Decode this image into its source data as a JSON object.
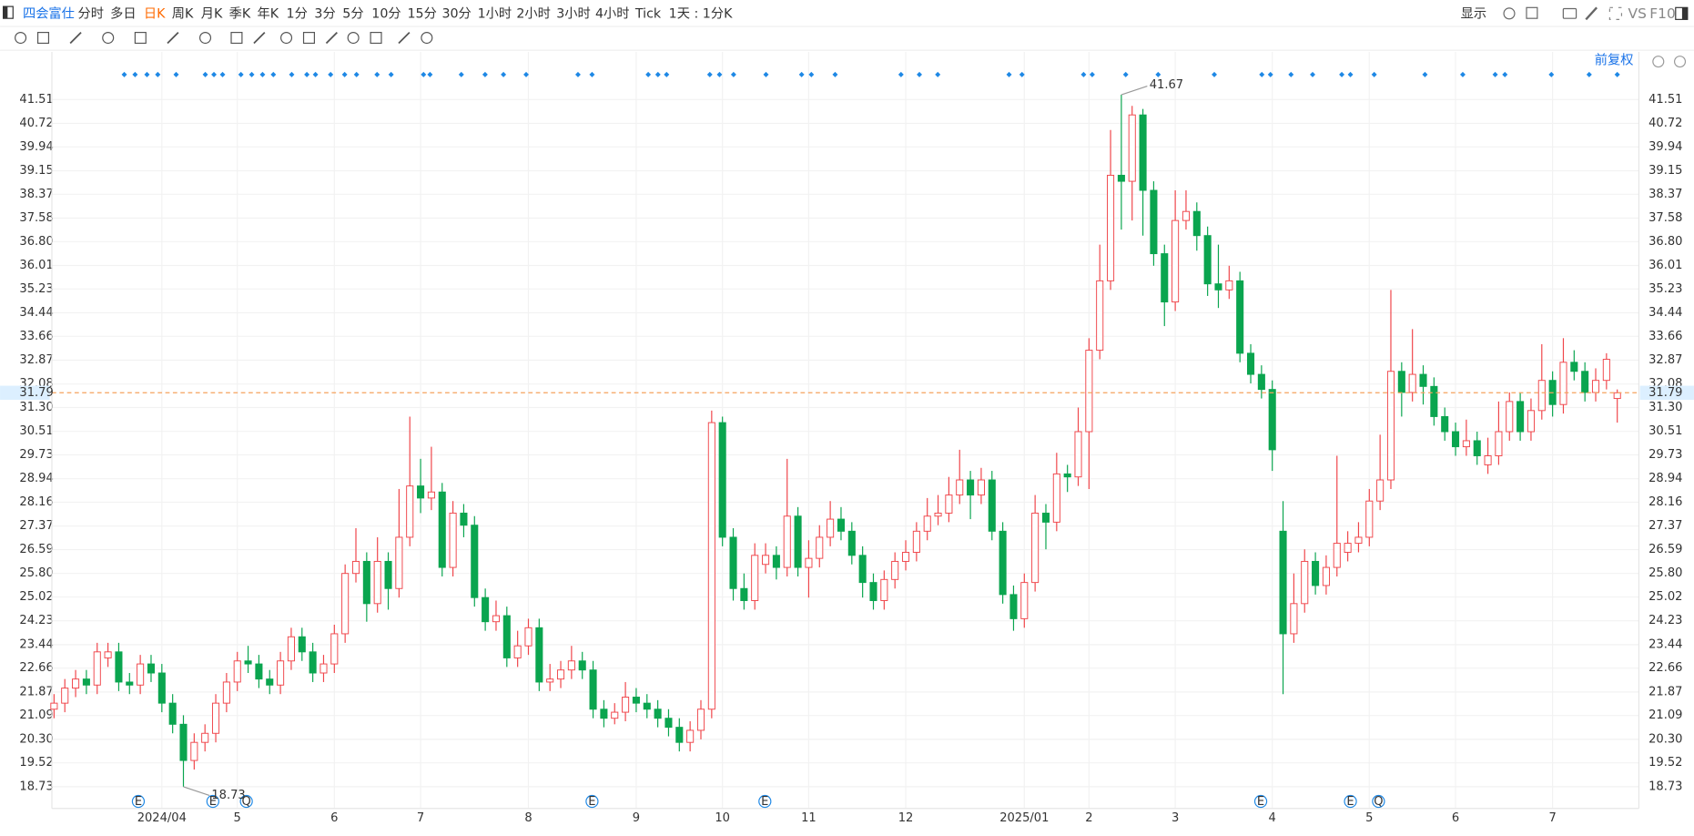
{
  "toolbar": {
    "symbol": "四会富仕",
    "periods": [
      "分时",
      "多日",
      "日K",
      "周K",
      "月K",
      "季K",
      "年K",
      "1分",
      "3分",
      "5分",
      "10分",
      "15分",
      "30分",
      "1小时",
      "2小时",
      "3小时",
      "4小时",
      "Tick"
    ],
    "range": "1天 : 1分K",
    "display": "显示",
    "vs": "VS",
    "f10": "F10"
  },
  "chart_data": {
    "type": "candlestick",
    "adjust": "前复权",
    "categories": [
      null,
      null,
      null,
      null,
      null,
      null,
      null,
      null,
      null,
      null,
      "2024/04",
      null,
      null,
      null,
      null,
      null,
      null,
      "5",
      null,
      null,
      null,
      null,
      null,
      null,
      null,
      null,
      "6",
      null,
      null,
      null,
      null,
      null,
      null,
      null,
      "7",
      null,
      null,
      null,
      null,
      null,
      null,
      null,
      null,
      null,
      "8",
      null,
      null,
      null,
      null,
      null,
      null,
      null,
      null,
      null,
      "9",
      null,
      null,
      null,
      null,
      null,
      null,
      null,
      "10",
      null,
      null,
      null,
      null,
      null,
      null,
      null,
      "11",
      null,
      null,
      null,
      null,
      null,
      null,
      null,
      null,
      "12",
      null,
      null,
      null,
      null,
      null,
      null,
      null,
      null,
      null,
      null,
      "2025/01",
      null,
      null,
      null,
      null,
      null,
      "2",
      null,
      null,
      null,
      null,
      null,
      null,
      null,
      "3",
      null,
      null,
      null,
      null,
      null,
      null,
      null,
      null,
      "4",
      null,
      null,
      null,
      null,
      null,
      null,
      null,
      null,
      "5",
      null,
      null,
      null,
      null,
      null,
      null,
      null,
      "6",
      null,
      null,
      null,
      null,
      null,
      null,
      null,
      null,
      "7",
      null,
      null,
      null,
      null,
      null,
      null
    ],
    "series": [
      {
        "values": [
          [
            21.3,
            21.8,
            21.0,
            21.5
          ],
          [
            21.5,
            22.3,
            21.2,
            22.0
          ],
          [
            22.0,
            22.6,
            21.7,
            22.3
          ],
          [
            22.3,
            22.6,
            21.8,
            22.1
          ],
          [
            22.1,
            23.5,
            21.8,
            23.2
          ],
          [
            23.0,
            23.5,
            22.7,
            23.2
          ],
          [
            23.2,
            23.5,
            21.9,
            22.2
          ],
          [
            22.2,
            22.5,
            21.8,
            22.1
          ],
          [
            22.1,
            23.1,
            21.8,
            22.8
          ],
          [
            22.8,
            23.1,
            22.2,
            22.5
          ],
          [
            22.5,
            22.8,
            21.2,
            21.5
          ],
          [
            21.5,
            21.8,
            20.5,
            20.8
          ],
          [
            20.8,
            21.1,
            18.73,
            19.6
          ],
          [
            19.6,
            20.5,
            19.3,
            20.2
          ],
          [
            20.2,
            20.8,
            19.9,
            20.5
          ],
          [
            20.5,
            21.8,
            20.2,
            21.5
          ],
          [
            21.5,
            22.5,
            21.2,
            22.2
          ],
          [
            22.2,
            23.2,
            21.9,
            22.9
          ],
          [
            22.9,
            23.4,
            22.5,
            22.8
          ],
          [
            22.8,
            23.1,
            22.0,
            22.3
          ],
          [
            22.3,
            22.6,
            21.8,
            22.1
          ],
          [
            22.1,
            23.2,
            21.8,
            22.9
          ],
          [
            22.9,
            24.0,
            22.6,
            23.7
          ],
          [
            23.7,
            24.0,
            22.9,
            23.2
          ],
          [
            23.2,
            23.5,
            22.2,
            22.5
          ],
          [
            22.5,
            23.1,
            22.2,
            22.8
          ],
          [
            22.8,
            24.1,
            22.5,
            23.8
          ],
          [
            23.8,
            26.1,
            23.5,
            25.8
          ],
          [
            25.8,
            27.3,
            25.5,
            26.2
          ],
          [
            26.2,
            26.5,
            24.2,
            24.8
          ],
          [
            24.8,
            27.0,
            24.5,
            26.2
          ],
          [
            26.2,
            26.5,
            24.6,
            25.3
          ],
          [
            25.3,
            28.6,
            25.0,
            27.0
          ],
          [
            27.0,
            31.0,
            26.7,
            28.7
          ],
          [
            28.7,
            29.6,
            27.8,
            28.3
          ],
          [
            28.3,
            30.0,
            27.9,
            28.5
          ],
          [
            28.5,
            28.8,
            25.7,
            26.0
          ],
          [
            26.0,
            28.2,
            25.7,
            27.8
          ],
          [
            27.8,
            28.1,
            27.0,
            27.4
          ],
          [
            27.4,
            27.7,
            24.7,
            25.0
          ],
          [
            25.0,
            25.3,
            23.9,
            24.2
          ],
          [
            24.2,
            24.9,
            23.9,
            24.4
          ],
          [
            24.4,
            24.7,
            22.7,
            23.0
          ],
          [
            23.0,
            23.9,
            22.7,
            23.4
          ],
          [
            23.4,
            24.3,
            23.1,
            24.0
          ],
          [
            24.0,
            24.3,
            21.9,
            22.2
          ],
          [
            22.2,
            22.8,
            21.9,
            22.3
          ],
          [
            22.3,
            22.9,
            22.0,
            22.6
          ],
          [
            22.6,
            23.4,
            22.3,
            22.9
          ],
          [
            22.9,
            23.2,
            22.3,
            22.6
          ],
          [
            22.6,
            22.9,
            21.0,
            21.3
          ],
          [
            21.3,
            21.6,
            20.7,
            21.0
          ],
          [
            21.0,
            21.5,
            20.8,
            21.2
          ],
          [
            21.2,
            22.2,
            20.9,
            21.7
          ],
          [
            21.7,
            22.0,
            21.2,
            21.5
          ],
          [
            21.5,
            21.8,
            21.0,
            21.3
          ],
          [
            21.3,
            21.6,
            20.7,
            21.0
          ],
          [
            21.0,
            21.3,
            20.4,
            20.7
          ],
          [
            20.7,
            21.0,
            19.9,
            20.2
          ],
          [
            20.2,
            20.9,
            19.9,
            20.6
          ],
          [
            20.6,
            21.6,
            20.3,
            21.3
          ],
          [
            21.3,
            31.2,
            21.0,
            30.8
          ],
          [
            30.8,
            31.0,
            26.7,
            27.0
          ],
          [
            27.0,
            27.3,
            24.9,
            25.3
          ],
          [
            25.3,
            25.8,
            24.6,
            24.9
          ],
          [
            24.9,
            26.8,
            24.6,
            26.4
          ],
          [
            26.1,
            26.8,
            25.8,
            26.4
          ],
          [
            26.4,
            26.7,
            25.6,
            26.0
          ],
          [
            26.0,
            29.6,
            25.7,
            27.7
          ],
          [
            27.7,
            28.0,
            25.7,
            26.0
          ],
          [
            26.0,
            26.9,
            25.0,
            26.3
          ],
          [
            26.3,
            27.4,
            26.0,
            27.0
          ],
          [
            27.0,
            28.2,
            26.7,
            27.6
          ],
          [
            27.6,
            28.0,
            26.9,
            27.2
          ],
          [
            27.2,
            27.5,
            26.1,
            26.4
          ],
          [
            26.4,
            26.7,
            25.0,
            25.5
          ],
          [
            25.5,
            25.8,
            24.6,
            24.9
          ],
          [
            24.9,
            25.9,
            24.6,
            25.6
          ],
          [
            25.6,
            26.5,
            25.3,
            26.2
          ],
          [
            26.2,
            26.9,
            25.9,
            26.5
          ],
          [
            26.5,
            27.5,
            26.2,
            27.2
          ],
          [
            27.2,
            28.3,
            26.9,
            27.7
          ],
          [
            27.7,
            28.4,
            27.4,
            27.8
          ],
          [
            27.8,
            29.0,
            27.5,
            28.4
          ],
          [
            28.4,
            29.9,
            28.1,
            28.9
          ],
          [
            28.9,
            29.2,
            27.6,
            28.4
          ],
          [
            28.4,
            29.3,
            28.1,
            28.9
          ],
          [
            28.9,
            29.2,
            26.9,
            27.2
          ],
          [
            27.2,
            27.5,
            24.8,
            25.1
          ],
          [
            25.1,
            25.4,
            23.9,
            24.3
          ],
          [
            24.3,
            25.8,
            24.0,
            25.5
          ],
          [
            25.5,
            28.4,
            25.2,
            27.8
          ],
          [
            27.8,
            28.1,
            26.6,
            27.5
          ],
          [
            27.5,
            29.8,
            27.2,
            29.1
          ],
          [
            29.1,
            29.4,
            28.5,
            29.0
          ],
          [
            29.0,
            31.3,
            28.7,
            30.5
          ],
          [
            30.5,
            33.6,
            28.6,
            33.2
          ],
          [
            33.2,
            36.7,
            32.9,
            35.5
          ],
          [
            35.5,
            40.5,
            35.2,
            39.0
          ],
          [
            39.0,
            41.67,
            37.2,
            38.8
          ],
          [
            38.8,
            41.3,
            37.5,
            41.0
          ],
          [
            41.0,
            41.2,
            37.0,
            38.5
          ],
          [
            38.5,
            38.8,
            36.0,
            36.4
          ],
          [
            36.4,
            36.7,
            34.0,
            34.8
          ],
          [
            34.8,
            38.5,
            34.5,
            37.5
          ],
          [
            37.5,
            38.5,
            37.2,
            37.8
          ],
          [
            37.8,
            38.1,
            36.5,
            37.0
          ],
          [
            37.0,
            37.3,
            35.0,
            35.4
          ],
          [
            35.4,
            36.7,
            34.6,
            35.2
          ],
          [
            35.2,
            36.0,
            34.9,
            35.5
          ],
          [
            35.5,
            35.8,
            32.8,
            33.1
          ],
          [
            33.1,
            33.4,
            32.1,
            32.4
          ],
          [
            32.4,
            32.7,
            31.6,
            31.9
          ],
          [
            31.9,
            32.2,
            29.2,
            29.9
          ],
          [
            27.2,
            28.2,
            21.8,
            23.8
          ],
          [
            23.8,
            25.8,
            23.5,
            24.8
          ],
          [
            24.8,
            26.6,
            24.5,
            26.2
          ],
          [
            26.2,
            26.5,
            25.1,
            25.4
          ],
          [
            25.4,
            26.4,
            25.1,
            26.0
          ],
          [
            26.0,
            29.7,
            25.7,
            26.8
          ],
          [
            26.5,
            27.2,
            26.2,
            26.8
          ],
          [
            26.8,
            27.5,
            26.5,
            27.0
          ],
          [
            27.0,
            28.6,
            26.7,
            28.2
          ],
          [
            28.2,
            30.4,
            27.9,
            28.9
          ],
          [
            28.9,
            35.2,
            28.6,
            32.5
          ],
          [
            32.5,
            32.8,
            31.0,
            31.8
          ],
          [
            31.8,
            33.9,
            31.5,
            32.4
          ],
          [
            32.4,
            32.7,
            31.4,
            32.0
          ],
          [
            32.0,
            32.3,
            30.7,
            31.0
          ],
          [
            31.0,
            31.3,
            30.2,
            30.5
          ],
          [
            30.5,
            30.8,
            29.7,
            30.0
          ],
          [
            30.0,
            30.9,
            29.7,
            30.2
          ],
          [
            30.2,
            30.5,
            29.4,
            29.7
          ],
          [
            29.4,
            30.3,
            29.1,
            29.7
          ],
          [
            29.7,
            31.5,
            29.4,
            30.5
          ],
          [
            30.5,
            31.8,
            30.2,
            31.5
          ],
          [
            31.5,
            31.8,
            30.2,
            30.5
          ],
          [
            30.5,
            31.6,
            30.2,
            31.2
          ],
          [
            31.2,
            33.4,
            30.9,
            32.2
          ],
          [
            32.2,
            32.5,
            31.0,
            31.4
          ],
          [
            31.4,
            33.6,
            31.1,
            32.8
          ],
          [
            32.8,
            33.2,
            32.2,
            32.5
          ],
          [
            32.5,
            32.8,
            31.5,
            31.8
          ],
          [
            31.8,
            32.6,
            31.5,
            32.2
          ],
          [
            32.2,
            33.1,
            31.9,
            32.9
          ],
          [
            31.6,
            31.9,
            30.8,
            31.79
          ]
        ]
      }
    ],
    "up_color": "#f0454a",
    "down_color": "#0aa54f",
    "ylim": [
      18.01,
      43.09
    ],
    "yticks": [
      18.73,
      19.52,
      {
        "value": 20.3,
        "label": "20.30"
      },
      21.09,
      21.87,
      22.66,
      23.44,
      24.23,
      25.02,
      {
        "value": 25.8,
        "label": "25.80"
      },
      26.59,
      27.37,
      28.16,
      28.94,
      29.73,
      30.51,
      {
        "value": 31.3,
        "label": "31.30"
      },
      32.08,
      32.87,
      33.66,
      34.44,
      35.23,
      36.01,
      {
        "value": 36.8,
        "label": "36.80"
      },
      37.58,
      38.37,
      39.15,
      39.94,
      40.72,
      41.51
    ],
    "grid": true,
    "last_price": 31.79,
    "max_label": 41.67,
    "min_label": 18.73,
    "events": [
      "E",
      "E",
      "Q",
      "E",
      "E",
      "E",
      "E",
      "Q"
    ]
  }
}
